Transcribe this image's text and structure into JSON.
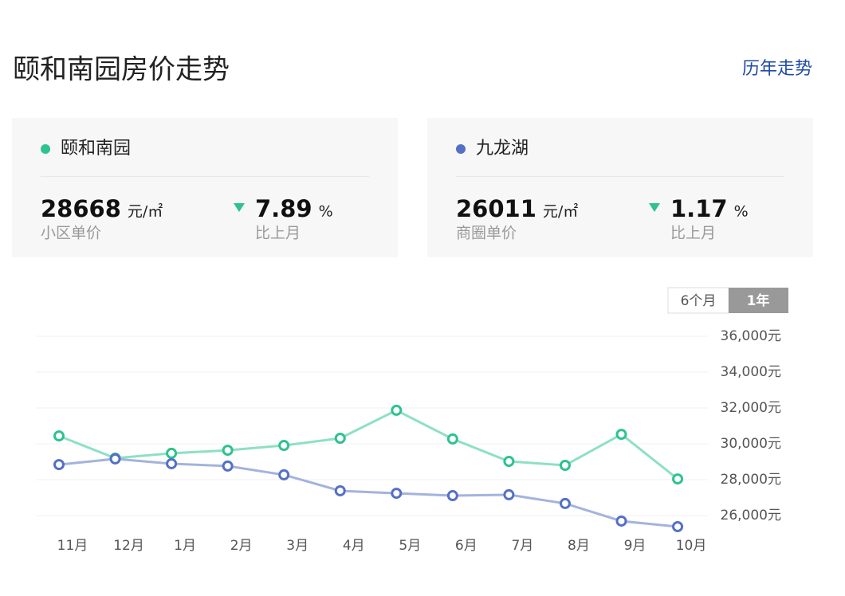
{
  "header": {
    "title": "颐和南园房价走势",
    "link": "历年走势"
  },
  "cards": [
    {
      "name": "颐和南园",
      "color": "#2ec28f",
      "price": 28668,
      "unit": "元/㎡",
      "price_label": "小区单价",
      "change": 7.89,
      "change_unit": "%",
      "change_label": "比上月"
    },
    {
      "name": "九龙湖",
      "color": "#5470c6",
      "price": 26011,
      "unit": "元/㎡",
      "price_label": "商圈单价",
      "change": 1.17,
      "change_unit": "%",
      "change_label": "比上月"
    }
  ],
  "toggle": [
    "6个月",
    "1年"
  ],
  "chart_data": {
    "type": "line",
    "categories": [
      "11月",
      "12月",
      "1月",
      "2月",
      "3月",
      "4月",
      "5月",
      "6月",
      "7月",
      "8月",
      "9月",
      "10月"
    ],
    "series": [
      {
        "name": "颐和南园",
        "color": "#2ec28f",
        "line_color": "#8ee0c3",
        "values": [
          30440,
          29200,
          29470,
          29640,
          29910,
          30310,
          31870,
          30270,
          29020,
          28800,
          30530,
          28040
        ]
      },
      {
        "name": "九龙湖",
        "color": "#5470c6",
        "line_color": "#a4b3dd",
        "values": [
          28840,
          29160,
          28890,
          28760,
          28270,
          27380,
          27240,
          27110,
          27160,
          26670,
          25690,
          25380
        ]
      }
    ],
    "ylim": [
      25000,
      36000
    ],
    "yticks": [
      {
        "value": 26000,
        "label": "26,000元"
      },
      {
        "value": 28000,
        "label": "28,000元"
      },
      {
        "value": 30000,
        "label": "30,000元"
      },
      {
        "value": 32000,
        "label": "32,000元"
      },
      {
        "value": 34000,
        "label": "34,000元"
      },
      {
        "value": 36000,
        "label": "36,000元"
      }
    ],
    "grid": true
  }
}
